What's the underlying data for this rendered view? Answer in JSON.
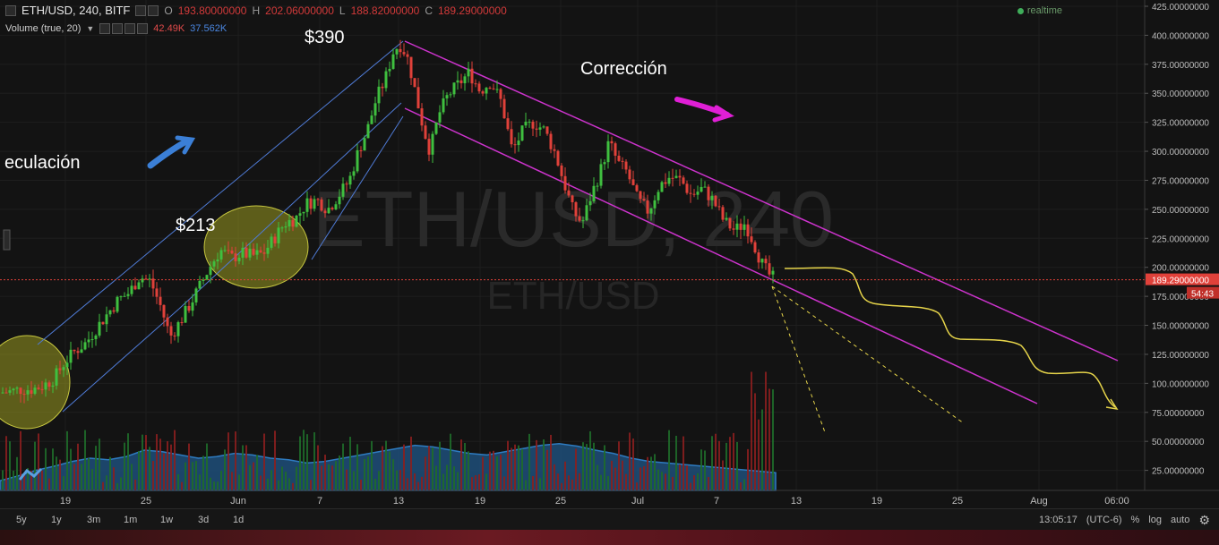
{
  "header": {
    "symbol": "ETH/USD, 240, BITF",
    "o_label": "O",
    "o_value": "193.80000000",
    "h_label": "H",
    "h_value": "202.06000000",
    "l_label": "L",
    "l_value": "188.82000000",
    "c_label": "C",
    "c_value": "189.29000000",
    "volume_label": "Volume (true, 20)",
    "volume_value_a": "42.49K",
    "volume_value_b": "37.562K",
    "realtime": "realtime"
  },
  "watermark": {
    "big": "ETH/USD, 240",
    "small": "ETH/USD"
  },
  "annotations": {
    "speculation": "eculación",
    "price_213": "$213",
    "price_390": "$390",
    "correction": "Corrección"
  },
  "price_axis": {
    "labels": [
      "425.00000000",
      "400.00000000",
      "375.00000000",
      "350.00000000",
      "325.00000000",
      "300.00000000",
      "275.00000000",
      "250.00000000",
      "225.00000000",
      "200.00000000",
      "175.00000000",
      "150.00000000",
      "125.00000000",
      "100.00000000",
      "75.00000000",
      "50.00000000",
      "25.00000000"
    ],
    "values": [
      425,
      400,
      375,
      350,
      325,
      300,
      275,
      250,
      225,
      200,
      175,
      150,
      125,
      100,
      75,
      50,
      25
    ],
    "current_price": "189.29000000",
    "countdown": "54:43"
  },
  "time_axis": {
    "labels": [
      "19",
      "25",
      "Jun",
      "7",
      "13",
      "19",
      "25",
      "Jul",
      "7",
      "13",
      "19",
      "25",
      "Aug",
      "06:00"
    ]
  },
  "timeframes": [
    "5y",
    "1y",
    "3m",
    "1m",
    "1w",
    "3d",
    "1d"
  ],
  "toolbar": {
    "time": "13:05:17",
    "tz": "(UTC-6)",
    "percent": "%",
    "log": "log",
    "auto": "auto",
    "settings_icon": "gear-icon"
  },
  "colors": {
    "up": "#3fbf3f",
    "down": "#e0413a",
    "channel": "#cc33cc",
    "trend": "#4f7bd6",
    "projection": "#e6d44a",
    "price_line": "#e0413a"
  },
  "chart_data": {
    "type": "candlestick",
    "title": "ETH/USD, 240, BITF",
    "ylim": [
      0,
      425
    ],
    "current_price": 189.29,
    "peak_label_value": 390,
    "support_label_value": 213,
    "close_path": [
      [
        0,
        92
      ],
      [
        12,
        93
      ],
      [
        24,
        95
      ],
      [
        36,
        95
      ],
      [
        48,
        98
      ],
      [
        60,
        104
      ],
      [
        72,
        118
      ],
      [
        84,
        128
      ],
      [
        96,
        135
      ],
      [
        108,
        148
      ],
      [
        120,
        160
      ],
      [
        132,
        172
      ],
      [
        144,
        178
      ],
      [
        156,
        192
      ],
      [
        168,
        188
      ],
      [
        180,
        165
      ],
      [
        190,
        140
      ],
      [
        200,
        152
      ],
      [
        210,
        165
      ],
      [
        222,
        182
      ],
      [
        234,
        200
      ],
      [
        246,
        215
      ],
      [
        258,
        208
      ],
      [
        270,
        212
      ],
      [
        282,
        210
      ],
      [
        294,
        212
      ],
      [
        306,
        225
      ],
      [
        318,
        238
      ],
      [
        330,
        242
      ],
      [
        342,
        255
      ],
      [
        354,
        258
      ],
      [
        366,
        250
      ],
      [
        378,
        262
      ],
      [
        390,
        275
      ],
      [
        400,
        300
      ],
      [
        410,
        318
      ],
      [
        420,
        345
      ],
      [
        430,
        362
      ],
      [
        440,
        388
      ],
      [
        448,
        392
      ],
      [
        456,
        378
      ],
      [
        464,
        350
      ],
      [
        472,
        322
      ],
      [
        480,
        300
      ],
      [
        490,
        332
      ],
      [
        500,
        348
      ],
      [
        512,
        358
      ],
      [
        524,
        368
      ],
      [
        536,
        352
      ],
      [
        548,
        360
      ],
      [
        560,
        342
      ],
      [
        572,
        300
      ],
      [
        584,
        318
      ],
      [
        596,
        325
      ],
      [
        608,
        318
      ],
      [
        620,
        298
      ],
      [
        630,
        272
      ],
      [
        640,
        248
      ],
      [
        650,
        238
      ],
      [
        660,
        262
      ],
      [
        670,
        282
      ],
      [
        680,
        308
      ],
      [
        690,
        290
      ],
      [
        700,
        282
      ],
      [
        712,
        258
      ],
      [
        724,
        248
      ],
      [
        736,
        270
      ],
      [
        748,
        278
      ],
      [
        760,
        275
      ],
      [
        772,
        262
      ],
      [
        784,
        268
      ],
      [
        796,
        258
      ],
      [
        808,
        240
      ],
      [
        820,
        232
      ],
      [
        832,
        238
      ],
      [
        842,
        220
      ],
      [
        850,
        204
      ],
      [
        858,
        194
      ],
      [
        866,
        189.29
      ]
    ],
    "volume_area_heights": [
      12,
      18,
      25,
      30,
      36,
      40,
      38,
      42,
      50,
      48,
      44,
      40,
      42,
      46,
      44,
      40,
      38,
      34,
      36,
      40,
      44,
      48,
      52,
      56,
      54,
      50,
      46,
      44,
      48,
      52,
      56,
      58,
      55,
      50,
      46,
      40,
      36,
      34,
      32,
      30,
      28,
      26,
      24,
      22
    ]
  }
}
